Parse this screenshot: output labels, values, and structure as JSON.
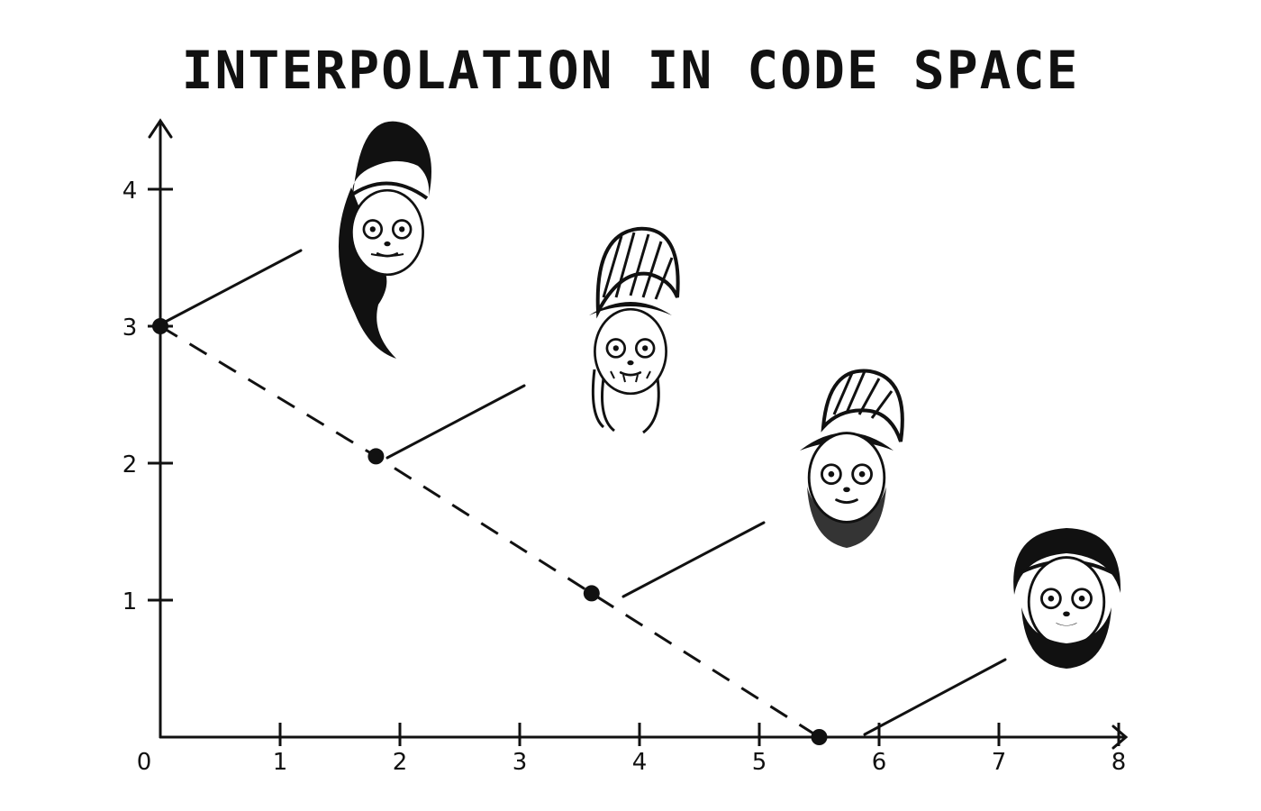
{
  "chart_data": {
    "type": "line",
    "title": "INTERPOLATION IN CODE SPACE",
    "xlabel": "",
    "ylabel": "",
    "xlim": [
      0,
      8
    ],
    "ylim": [
      0,
      4.3
    ],
    "x_ticks": [
      "0",
      "1",
      "2",
      "3",
      "4",
      "5",
      "6",
      "7",
      "8"
    ],
    "y_ticks": [
      "1",
      "2",
      "3",
      "4"
    ],
    "grid": false,
    "series": [
      {
        "style": "dashed",
        "points": [
          {
            "x": 0,
            "y": 3
          },
          {
            "x": 1.8,
            "y": 2.05
          },
          {
            "x": 3.6,
            "y": 1.05
          },
          {
            "x": 5.5,
            "y": 0
          }
        ]
      }
    ],
    "annotations": [
      {
        "icon": "woman-face-icon",
        "hair": "long-black"
      },
      {
        "icon": "woman-transition-face-icon",
        "hair": "bun-with-beard"
      },
      {
        "icon": "man-transition-face-icon",
        "hair": "bun-with-beard"
      },
      {
        "icon": "bearded-man-face-icon",
        "hair": "short-curly"
      }
    ]
  }
}
